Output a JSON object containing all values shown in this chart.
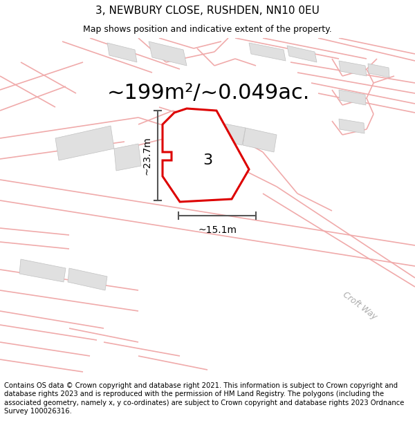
{
  "title_line1": "3, NEWBURY CLOSE, RUSHDEN, NN10 0EU",
  "title_line2": "Map shows position and indicative extent of the property.",
  "area_text": "~199m²/~0.049ac.",
  "label_number": "3",
  "dim_height": "~23.7m",
  "dim_width": "~15.1m",
  "road_label": "Croft Way",
  "footer_text": "Contains OS data © Crown copyright and database right 2021. This information is subject to Crown copyright and database rights 2023 and is reproduced with the permission of HM Land Registry. The polygons (including the associated geometry, namely x, y co-ordinates) are subject to Crown copyright and database rights 2023 Ordnance Survey 100026316.",
  "bg_color": "#ffffff",
  "map_bg_color": "#ffffff",
  "road_color": "#f0aaaa",
  "building_color": "#e0e0e0",
  "plot_fill": "#ffffff",
  "plot_edge": "#dd0000",
  "dim_line_color": "#555555",
  "title_fontsize": 11,
  "subtitle_fontsize": 9,
  "area_fontsize": 22,
  "label_fontsize": 16,
  "dim_fontsize": 10,
  "footer_fontsize": 7.2,
  "road_lw": 1.2,
  "plot_lw": 2.2
}
